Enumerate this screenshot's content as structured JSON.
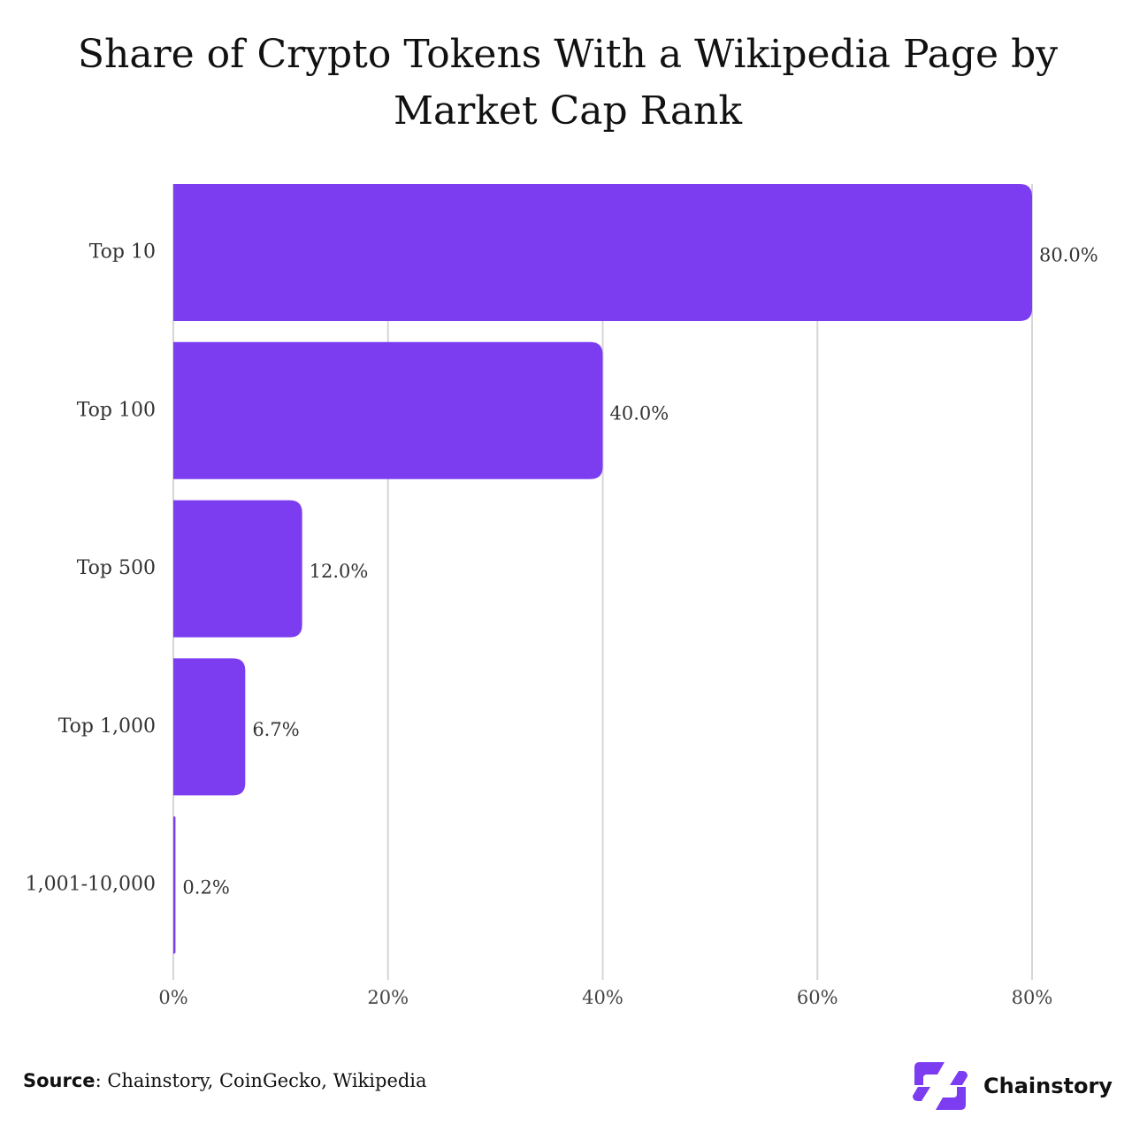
{
  "title": "Share of Crypto Tokens With a Wikipedia Page by Market Cap Rank",
  "colors": {
    "bar": "#7c3df0",
    "grid": "#d6d6d6",
    "text": "#333333"
  },
  "chart_data": {
    "type": "bar",
    "orientation": "horizontal",
    "title": "Share of Crypto Tokens With a Wikipedia Page by Market Cap Rank",
    "categories": [
      "Top 10",
      "Top 100",
      "Top 500",
      "Top 1,000",
      "1,001-10,000"
    ],
    "values": [
      80.0,
      40.0,
      12.0,
      6.7,
      0.2
    ],
    "value_labels": [
      "80.0%",
      "40.0%",
      "12.0%",
      "6.7%",
      "0.2%"
    ],
    "xlim": [
      0,
      80
    ],
    "xticks": [
      0,
      20,
      40,
      60,
      80
    ],
    "xtick_labels": [
      "0%",
      "20%",
      "40%",
      "60%",
      "80%"
    ],
    "xlabel": "",
    "ylabel": "",
    "grid": true,
    "legend": "none"
  },
  "footer": {
    "source_prefix": "Source",
    "source_text": ": Chainstory, CoinGecko, Wikipedia",
    "brand": "Chainstory",
    "logo_icon": "chainstory-logo-icon"
  }
}
